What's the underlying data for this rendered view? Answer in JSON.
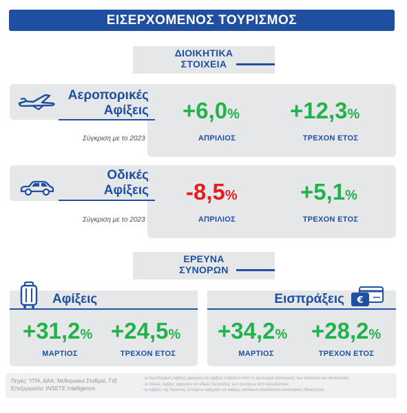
{
  "title": "ΕΙΣΕΡΧΟΜΕΝΟΣ ΤΟΥΡΙΣΜΟΣ",
  "admin_section": {
    "heading_line1": "ΔΙΟΙΚΗΤΙΚΑ",
    "heading_line2": "ΣΤΟΙΧΕΙΑ"
  },
  "air": {
    "title_line1": "Αεροπορικές",
    "title_line2": "Αφίξεις",
    "compare": "Σύγκριση με το 2023",
    "v1": "+6,0",
    "v1_label": "ΑΠΡΙΛΙΟΣ",
    "v2": "+12,3",
    "v2_label": "ΤΡΕΧΟΝ ΕΤΟΣ",
    "pct": "%"
  },
  "road": {
    "title_line1": "Οδικές",
    "title_line2": "Αφίξεις",
    "compare": "Σύγκριση με το 2023",
    "v1": "-8,5",
    "v1_label": "ΑΠΡΙΛΙΟΣ",
    "v2": "+5,1",
    "v2_label": "ΤΡΕΧΟΝ ΕΤΟΣ",
    "pct": "%"
  },
  "survey_section": {
    "heading_line1": "ΕΡΕΥΝΑ",
    "heading_line2": "ΣΥΝΟΡΩΝ"
  },
  "arrivals": {
    "title": "Αφίξεις",
    "v1": "+31,2",
    "v1_label": "ΜΑΡΤΙΟΣ",
    "v2": "+24,5",
    "v2_label": "ΤΡΕΧΟΝ ΕΤΟΣ",
    "pct": "%"
  },
  "receipts": {
    "title": "Εισπράξεις",
    "v1": "+34,2",
    "v1_label": "ΜΑΡΤΙΟΣ",
    "v2": "+28,2",
    "v2_label": "ΤΡΕΧΟΝ ΕΤΟΣ",
    "pct": "%"
  },
  "footer": {
    "sources": "Πηγές: ΥΠΑ, ΔΑΑ, Μεθοριακοί Σταθμοί, ΤτΕ",
    "processing": "Επεξεργασία: INSETE Intelligence",
    "note1": "- οι Αεροπορικές Αφίξεις αφορούν σε αφίξεις επιβατών από το εξωτερικό αναλογικές των κατοικών και εθνικότητες",
    "note2": "- οι Οδικές Αφίξεις αφορούν σε οδικές διελεύσεις των συνόρων από αλλοδαπούς",
    "note3": "- οι Αφίξεις της Έρευνας Συνόρων αφορούν σε αφίξεις κατοίκων αλλοδαπών αναλογικές εθνικότητας"
  },
  "colors": {
    "brand_blue": "#1e4fa1",
    "positive": "#22b24c",
    "negative": "#e31e24",
    "card_bg": "#e6e7e9"
  }
}
